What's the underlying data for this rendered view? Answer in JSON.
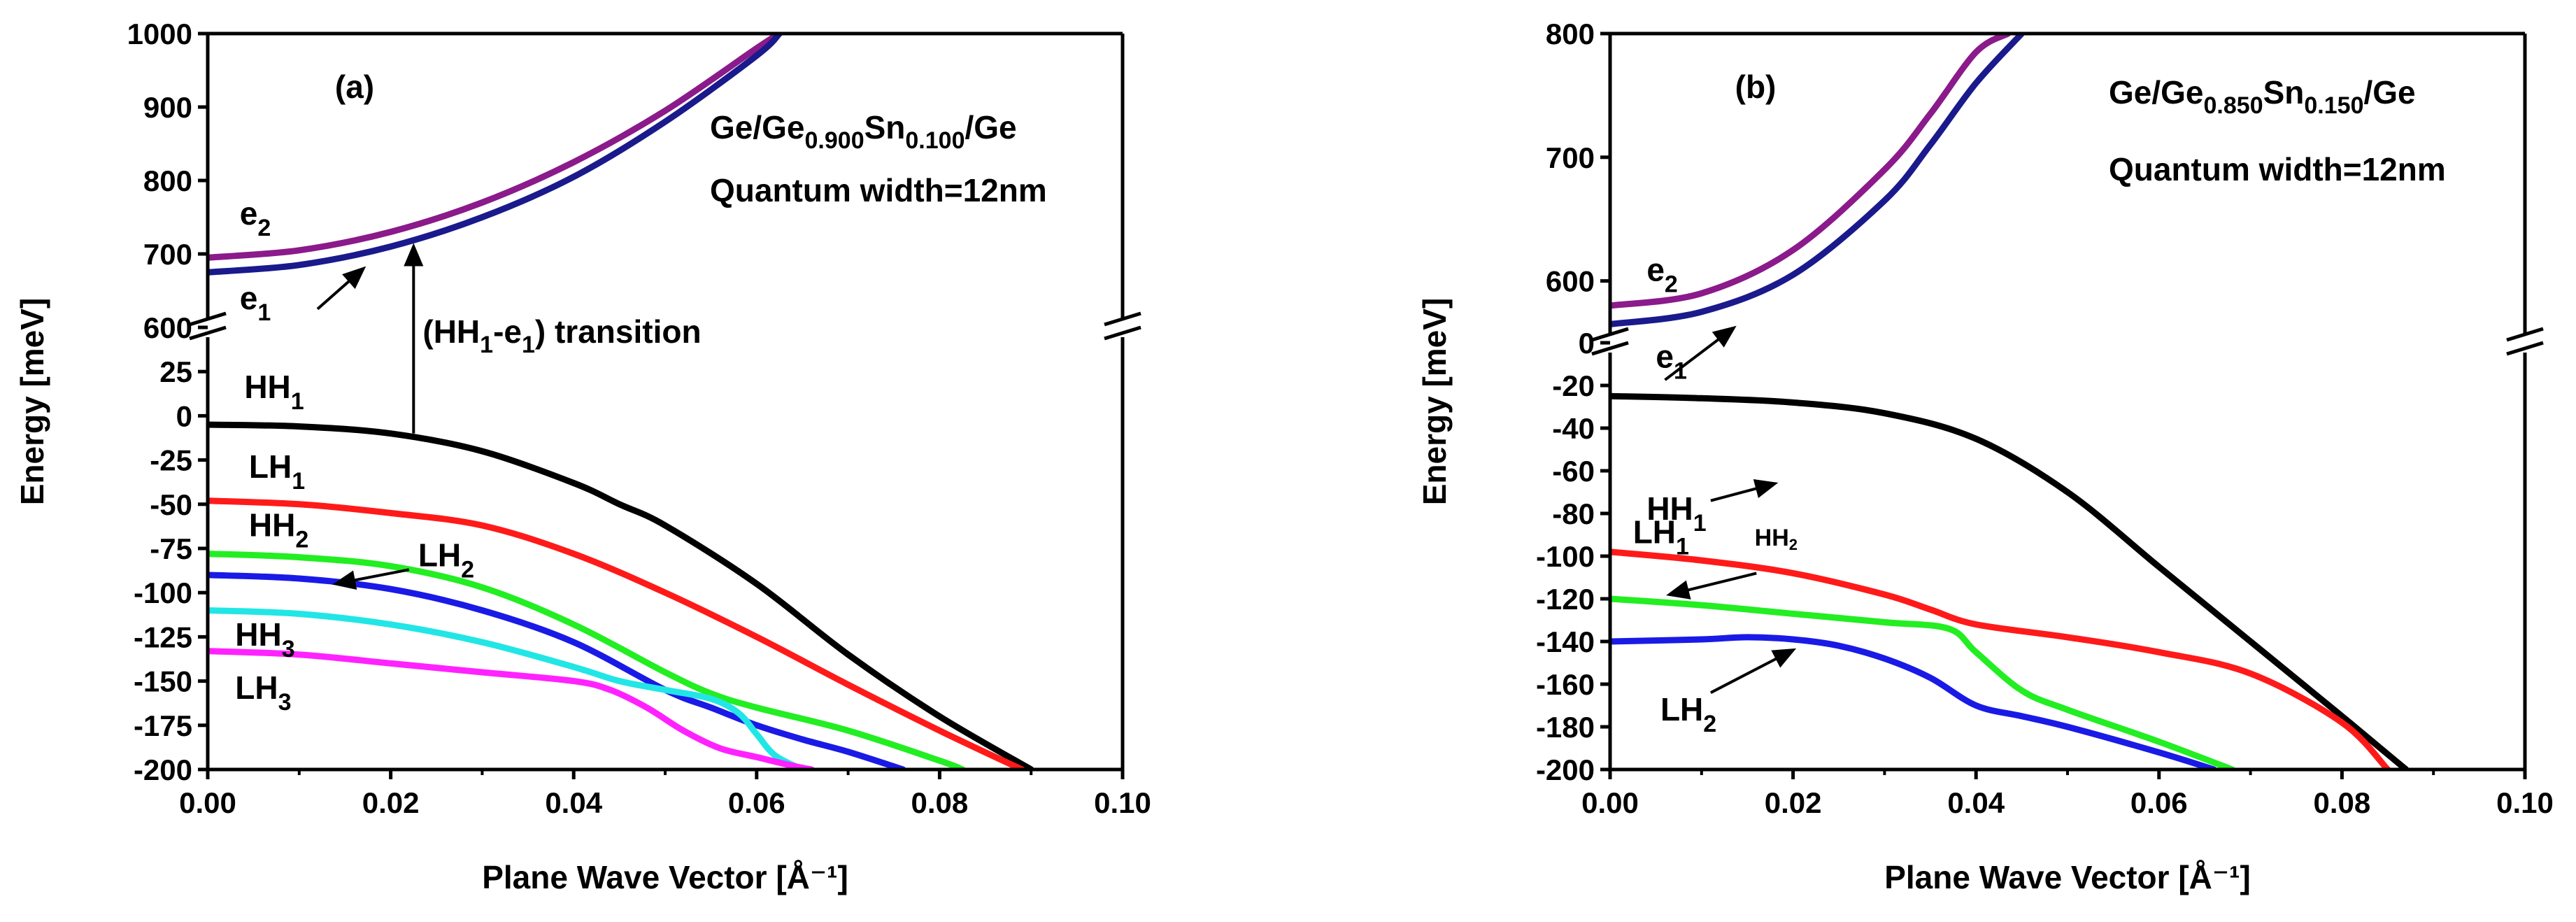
{
  "chart_data": [
    {
      "type": "line",
      "panel_label": "(a)",
      "annotation_lines": [
        {
          "parts": [
            {
              "t": "Ge/Ge"
            },
            {
              "t": "0.900",
              "sub": true
            },
            {
              "t": "Sn"
            },
            {
              "t": "0.100",
              "sub": true
            },
            {
              "t": "/Ge"
            }
          ]
        },
        {
          "parts": [
            {
              "t": "Quantum width=12nm"
            }
          ]
        }
      ],
      "xlabel": "Plane Wave Vector [Å⁻¹]",
      "ylabel": "Energy [meV]",
      "xlim": [
        0,
        0.1
      ],
      "x_ticks": [
        "0.00",
        "0.02",
        "0.04",
        "0.06",
        "0.08",
        "0.10"
      ],
      "y_upper": {
        "range": [
          600,
          1000
        ],
        "ticks": [
          "600",
          "700",
          "800",
          "900",
          "1000"
        ]
      },
      "y_lower": {
        "range": [
          -200,
          50
        ],
        "ticks": [
          "-200",
          "-175",
          "-150",
          "-125",
          "-100",
          "-75",
          "-50",
          "-25",
          "0",
          "25"
        ]
      },
      "transition_label": {
        "parts": [
          {
            "t": "(HH"
          },
          {
            "t": "1",
            "sub": true
          },
          {
            "t": "-e"
          },
          {
            "t": "1",
            "sub": true
          },
          {
            "t": ") transition"
          }
        ]
      },
      "series": [
        {
          "name": "e2",
          "color": "#8B1A8B",
          "segment": "upper",
          "x": [
            0,
            0.01,
            0.02,
            0.03,
            0.04,
            0.05,
            0.06,
            0.0625
          ],
          "y": [
            695,
            705,
            730,
            770,
            825,
            895,
            980,
            1000
          ]
        },
        {
          "name": "e1",
          "color": "#1A1A8C",
          "segment": "upper",
          "x": [
            0,
            0.01,
            0.02,
            0.03,
            0.04,
            0.05,
            0.06,
            0.0625
          ],
          "y": [
            675,
            685,
            710,
            750,
            805,
            880,
            970,
            1000
          ]
        },
        {
          "name": "HH1",
          "color": "#000000",
          "segment": "lower",
          "x": [
            0,
            0.01,
            0.02,
            0.03,
            0.04,
            0.045,
            0.05,
            0.06,
            0.07,
            0.08,
            0.09
          ],
          "y": [
            -5,
            -6,
            -10,
            -20,
            -38,
            -50,
            -62,
            -95,
            -135,
            -170,
            -200
          ]
        },
        {
          "name": "LH1",
          "color": "#FF1A1A",
          "segment": "lower",
          "x": [
            0,
            0.01,
            0.02,
            0.03,
            0.04,
            0.05,
            0.06,
            0.07,
            0.08,
            0.089
          ],
          "y": [
            -48,
            -50,
            -55,
            -62,
            -78,
            -100,
            -125,
            -152,
            -178,
            -200
          ]
        },
        {
          "name": "HH2",
          "color": "#22EE22",
          "segment": "lower",
          "x": [
            0,
            0.01,
            0.02,
            0.03,
            0.04,
            0.05,
            0.055,
            0.06,
            0.07,
            0.08,
            0.0825
          ],
          "y": [
            -78,
            -80,
            -85,
            -97,
            -118,
            -145,
            -157,
            -165,
            -178,
            -195,
            -200
          ]
        },
        {
          "name": "LH2",
          "color": "#1A1AE6",
          "segment": "lower",
          "x": [
            0,
            0.01,
            0.02,
            0.03,
            0.04,
            0.05,
            0.055,
            0.06,
            0.065,
            0.07,
            0.076
          ],
          "y": [
            -90,
            -92,
            -98,
            -110,
            -128,
            -155,
            -165,
            -175,
            -183,
            -190,
            -200
          ]
        },
        {
          "name": "HH3",
          "color": "#22E6E6",
          "segment": "lower",
          "x": [
            0,
            0.01,
            0.02,
            0.03,
            0.04,
            0.045,
            0.05,
            0.055,
            0.058,
            0.06,
            0.062,
            0.065
          ],
          "y": [
            -110,
            -112,
            -118,
            -128,
            -142,
            -150,
            -155,
            -160,
            -168,
            -180,
            -192,
            -200
          ]
        },
        {
          "name": "LH3",
          "color": "#FF22FF",
          "segment": "lower",
          "x": [
            0,
            0.01,
            0.02,
            0.03,
            0.04,
            0.044,
            0.048,
            0.052,
            0.056,
            0.06,
            0.064,
            0.066
          ],
          "y": [
            -133,
            -135,
            -140,
            -145,
            -150,
            -155,
            -165,
            -178,
            -188,
            -193,
            -198,
            -200
          ]
        }
      ],
      "curve_labels": [
        {
          "name": "e",
          "sub": "2",
          "x": 0.0035,
          "y": 740,
          "seg": "upper"
        },
        {
          "name": "e",
          "sub": "1",
          "x": 0.0035,
          "y": 625,
          "seg": "upper"
        },
        {
          "name": "HH",
          "sub": "1",
          "x": 0.004,
          "y": 10,
          "seg": "lower"
        },
        {
          "name": "LH",
          "sub": "1",
          "x": 0.0045,
          "y": -35,
          "seg": "lower"
        },
        {
          "name": "HH",
          "sub": "2",
          "x": 0.0045,
          "y": -68,
          "seg": "lower"
        },
        {
          "name": "LH",
          "sub": "2",
          "x": 0.023,
          "y": -85,
          "seg": "lower"
        },
        {
          "name": "HH",
          "sub": "3",
          "x": 0.003,
          "y": -130,
          "seg": "lower"
        },
        {
          "name": "LH",
          "sub": "3",
          "x": 0.003,
          "y": -160,
          "seg": "lower"
        }
      ]
    },
    {
      "type": "line",
      "panel_label": "(b)",
      "annotation_lines": [
        {
          "parts": [
            {
              "t": "Ge/Ge"
            },
            {
              "t": "0.850",
              "sub": true
            },
            {
              "t": "Sn"
            },
            {
              "t": "0.150",
              "sub": true
            },
            {
              "t": "/Ge"
            }
          ]
        },
        {
          "parts": [
            {
              "t": "Quantum width=12nm"
            }
          ]
        }
      ],
      "xlabel": "Plane Wave Vector [Å⁻¹]",
      "ylabel": "Energy [meV]",
      "xlim": [
        0,
        0.1
      ],
      "x_ticks": [
        "0.00",
        "0.02",
        "0.04",
        "0.06",
        "0.08",
        "0.10"
      ],
      "y_upper": {
        "range": [
          550,
          800
        ],
        "ticks": [
          "600",
          "700",
          "800"
        ]
      },
      "y_lower": {
        "range": [
          -200,
          0
        ],
        "ticks": [
          "-200",
          "-180",
          "-160",
          "-140",
          "-120",
          "-100",
          "-80",
          "-60",
          "-40",
          "-20",
          "0"
        ]
      },
      "series": [
        {
          "name": "e2",
          "color": "#8B1A8B",
          "segment": "upper",
          "x": [
            0,
            0.01,
            0.02,
            0.03,
            0.035,
            0.04,
            0.0435
          ],
          "y": [
            580,
            590,
            625,
            690,
            735,
            785,
            800
          ]
        },
        {
          "name": "e1",
          "color": "#1A1A8C",
          "segment": "upper",
          "x": [
            0,
            0.01,
            0.02,
            0.03,
            0.035,
            0.04,
            0.045
          ],
          "y": [
            565,
            575,
            605,
            665,
            710,
            760,
            800
          ]
        },
        {
          "name": "HH1",
          "color": "#000000",
          "segment": "lower",
          "x": [
            0,
            0.01,
            0.02,
            0.03,
            0.04,
            0.05,
            0.06,
            0.07,
            0.08,
            0.087
          ],
          "y": [
            -25,
            -26,
            -28,
            -33,
            -45,
            -70,
            -105,
            -140,
            -175,
            -200
          ]
        },
        {
          "name": "LH1",
          "color": "#FF1A1A",
          "segment": "lower",
          "x": [
            0,
            0.01,
            0.02,
            0.03,
            0.035,
            0.04,
            0.05,
            0.06,
            0.07,
            0.08,
            0.085
          ],
          "y": [
            -98,
            -102,
            -108,
            -118,
            -125,
            -132,
            -138,
            -145,
            -155,
            -178,
            -200
          ]
        },
        {
          "name": "HH2",
          "color": "#22EE22",
          "segment": "lower",
          "x": [
            0,
            0.01,
            0.02,
            0.03,
            0.037,
            0.04,
            0.045,
            0.05,
            0.06,
            0.068
          ],
          "y": [
            -120,
            -123,
            -127,
            -131,
            -134,
            -145,
            -163,
            -172,
            -187,
            -200
          ]
        },
        {
          "name": "LH2",
          "color": "#1A1AE6",
          "segment": "lower",
          "x": [
            0,
            0.01,
            0.015,
            0.02,
            0.025,
            0.03,
            0.035,
            0.04,
            0.045,
            0.05,
            0.06,
            0.066
          ],
          "y": [
            -140,
            -139,
            -138,
            -139,
            -142,
            -148,
            -157,
            -170,
            -175,
            -180,
            -192,
            -200
          ]
        }
      ],
      "curve_labels": [
        {
          "name": "e",
          "sub": "2",
          "x": 0.004,
          "y": 600,
          "seg": "upper"
        },
        {
          "name": "e",
          "sub": "1",
          "x": 0.005,
          "y": 530,
          "seg": "upper"
        },
        {
          "name": "HH",
          "sub": "1",
          "x": 0.004,
          "y": -83,
          "seg": "lower"
        },
        {
          "name": "LH",
          "sub": "1",
          "x": 0.0025,
          "y": -94,
          "seg": "lower"
        },
        {
          "name": "HH",
          "sub": "2",
          "x": 0.0158,
          "y": -95,
          "seg": "lower",
          "small": true
        },
        {
          "name": "LH",
          "sub": "2",
          "x": 0.0055,
          "y": -177,
          "seg": "lower"
        }
      ]
    }
  ]
}
